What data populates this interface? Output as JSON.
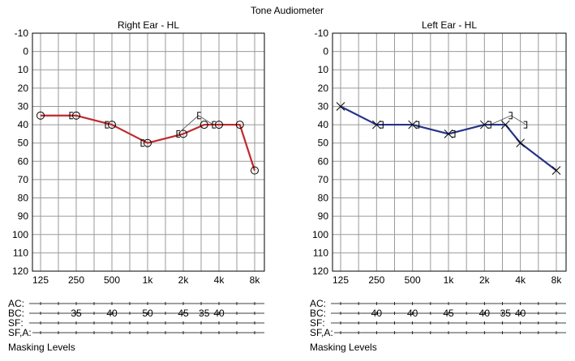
{
  "page": {
    "title": "Tone Audiometer"
  },
  "chart_data": [
    {
      "type": "line",
      "title": "Right Ear - HL",
      "color": "#c0282c",
      "x_tick_labels": [
        "125",
        "250",
        "500",
        "1k",
        "2k",
        "4k",
        "8k"
      ],
      "y_ticks": [
        -10,
        0,
        10,
        20,
        30,
        40,
        50,
        60,
        70,
        80,
        90,
        100,
        110,
        120
      ],
      "ylim": [
        -10,
        120
      ],
      "y_inverted": true,
      "grid": true,
      "series": [
        {
          "symbol": "circle",
          "x": [
            125,
            250,
            500,
            1000,
            2000,
            3000,
            4000,
            6000,
            8000
          ],
          "values": [
            35,
            35,
            40,
            50,
            45,
            40,
            40,
            40,
            65
          ]
        }
      ],
      "bone_conduction": {
        "symbol": "bracket-open",
        "x": [
          250,
          500,
          1000,
          2000,
          3000,
          4000
        ],
        "values": [
          35,
          40,
          50,
          45,
          35,
          40
        ]
      },
      "rows": [
        {
          "label": "AC:",
          "values": []
        },
        {
          "label": "BC:",
          "values": [
            {
              "x": 250,
              "text": "35"
            },
            {
              "x": 500,
              "text": "40"
            },
            {
              "x": 1000,
              "text": "50"
            },
            {
              "x": 2000,
              "text": "45"
            },
            {
              "x": 3000,
              "text": "35"
            },
            {
              "x": 4000,
              "text": "40"
            }
          ]
        },
        {
          "label": "SF:",
          "values": []
        },
        {
          "label": "SF,A:",
          "values": []
        }
      ],
      "footer": "Masking Levels"
    },
    {
      "type": "line",
      "title": "Left Ear - HL",
      "color": "#26338a",
      "x_tick_labels": [
        "125",
        "250",
        "500",
        "1k",
        "2k",
        "4k",
        "8k"
      ],
      "y_ticks": [
        -10,
        0,
        10,
        20,
        30,
        40,
        50,
        60,
        70,
        80,
        90,
        100,
        110,
        120
      ],
      "ylim": [
        -10,
        120
      ],
      "y_inverted": true,
      "grid": true,
      "series": [
        {
          "symbol": "cross",
          "x": [
            125,
            250,
            500,
            1000,
            2000,
            3000,
            4000,
            8000
          ],
          "values": [
            30,
            40,
            40,
            45,
            40,
            40,
            50,
            65
          ]
        }
      ],
      "bone_conduction": {
        "symbol": "bracket-close",
        "x": [
          250,
          500,
          1000,
          2000,
          3000,
          4000
        ],
        "values": [
          40,
          40,
          45,
          40,
          35,
          40
        ]
      },
      "rows": [
        {
          "label": "AC:",
          "values": []
        },
        {
          "label": "BC:",
          "values": [
            {
              "x": 250,
              "text": "40"
            },
            {
              "x": 500,
              "text": "40"
            },
            {
              "x": 1000,
              "text": "45"
            },
            {
              "x": 2000,
              "text": "40"
            },
            {
              "x": 3000,
              "text": "35"
            },
            {
              "x": 4000,
              "text": "40"
            }
          ]
        },
        {
          "label": "SF:",
          "values": []
        },
        {
          "label": "SF,A:",
          "values": []
        }
      ],
      "footer": "Masking Levels"
    }
  ]
}
